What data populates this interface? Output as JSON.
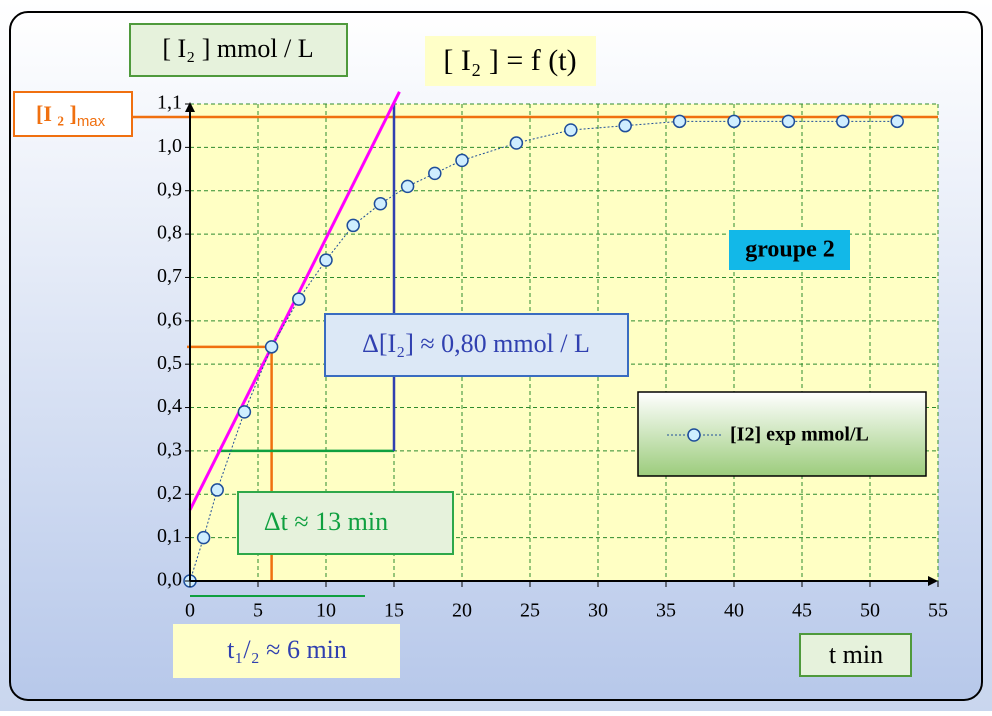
{
  "chart_data": {
    "type": "line",
    "title": "[ I₂ ] = f (t)",
    "y_axis_label": "[ I₂ ] mmol / L",
    "x_axis_label": "t min",
    "imax_label": {
      "main": "[I ₂ ]",
      "sub": "max"
    },
    "annotations": {
      "delta_i2": "Δ[I₂] ≈ 0,80 mmol / L",
      "delta_t": "Δt ≈ 13 min",
      "half_life": "t₁/₂ ≈ 6 min",
      "group": "groupe 2"
    },
    "xlim": [
      0,
      55
    ],
    "xticks": [
      0,
      5,
      10,
      15,
      20,
      25,
      30,
      35,
      40,
      45,
      50,
      55
    ],
    "ylim": [
      0,
      1.1
    ],
    "yticks": [
      {
        "value": 0,
        "label": "0,0"
      },
      {
        "value": 0.1,
        "label": "0,1"
      },
      {
        "value": 0.2,
        "label": "0,2"
      },
      {
        "value": 0.3,
        "label": "0,3"
      },
      {
        "value": 0.4,
        "label": "0,4"
      },
      {
        "value": 0.5,
        "label": "0,5"
      },
      {
        "value": 0.6,
        "label": "0,6"
      },
      {
        "value": 0.7,
        "label": "0,7"
      },
      {
        "value": 0.8,
        "label": "0,8"
      },
      {
        "value": 0.9,
        "label": "0,9"
      },
      {
        "value": 1.0,
        "label": "1,0"
      },
      {
        "value": 1.1,
        "label": "1,1"
      }
    ],
    "grid": true,
    "x": [
      0,
      1,
      2,
      4,
      6,
      8,
      10,
      12,
      14,
      16,
      18,
      20,
      24,
      28,
      32,
      36,
      40,
      44,
      48,
      52
    ],
    "series": [
      {
        "name": "[I2] exp mmol/L",
        "color": "#1f4e9a",
        "values": [
          0,
          0.1,
          0.21,
          0.39,
          0.54,
          0.65,
          0.74,
          0.82,
          0.87,
          0.91,
          0.94,
          0.97,
          1.01,
          1.04,
          1.05,
          1.06,
          1.06,
          1.06,
          1.06,
          1.06
        ]
      }
    ],
    "tangent": {
      "color": "#ff00ff",
      "x": [
        0,
        15.4
      ],
      "values": [
        0.164,
        1.128
      ]
    },
    "imax": {
      "color": "#f07010",
      "value": 1.07
    },
    "half_life_point": {
      "color": "#f07010",
      "t": 6,
      "value": 0.54
    },
    "delta_construction": {
      "t": [
        2,
        15
      ],
      "value": [
        0.3,
        1.1
      ],
      "h_color": "#10a040",
      "v_color": "#3040b0"
    }
  }
}
